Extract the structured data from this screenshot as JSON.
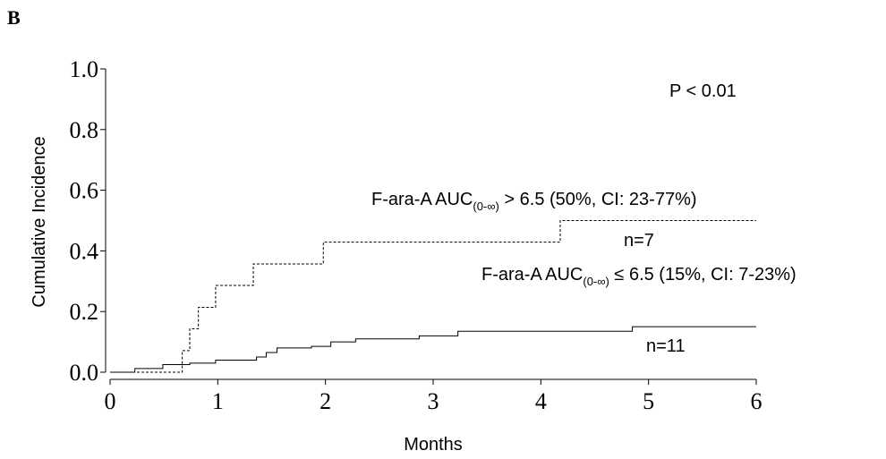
{
  "chart_data": {
    "type": "line",
    "step": "post",
    "panel_label": "B",
    "ylabel": "Cumulative Incidence",
    "xlabel": "Months",
    "xlim": [
      0,
      6
    ],
    "xticks": [
      0,
      1,
      2,
      3,
      4,
      5,
      6
    ],
    "ylim": [
      0,
      1
    ],
    "yticks": [
      {
        "value": 0,
        "label": "0.0"
      },
      {
        "value": 0.2,
        "label": "0.2"
      },
      {
        "value": 0.4,
        "label": "0.4"
      },
      {
        "value": 0.6,
        "label": "0.6"
      },
      {
        "value": 0.8,
        "label": "0.8"
      },
      {
        "value": 1,
        "label": "1.0"
      }
    ],
    "p_value": "P < 0.01",
    "series": [
      {
        "color": "#000000",
        "dash": true,
        "label": {
          "main": "F-ara-A AUC",
          "sub": "(0-∞)",
          "rest": " > 6.5  (50%, CI: 23-77%)"
        },
        "n": "n=7",
        "x": [
          0,
          0.67,
          0.74,
          0.82,
          0.98,
          1.33,
          1.98,
          4.18,
          6
        ],
        "values": [
          0,
          0.071,
          0.143,
          0.214,
          0.286,
          0.357,
          0.429,
          0.5,
          0.5
        ]
      },
      {
        "color": "#000000",
        "dash": false,
        "label": {
          "main": "F-ara-A AUC",
          "sub": "(0-∞)",
          "rest": " ≤ 6.5  (15%, CI: 7-23%)"
        },
        "n": "n=11",
        "x": [
          0,
          0.23,
          0.49,
          0.74,
          0.98,
          1.36,
          1.45,
          1.55,
          1.87,
          2.05,
          2.28,
          2.87,
          3.23,
          4.85,
          6
        ],
        "values": [
          0,
          0.012,
          0.025,
          0.03,
          0.04,
          0.05,
          0.065,
          0.08,
          0.085,
          0.1,
          0.11,
          0.12,
          0.135,
          0.15,
          0.15
        ]
      }
    ]
  }
}
